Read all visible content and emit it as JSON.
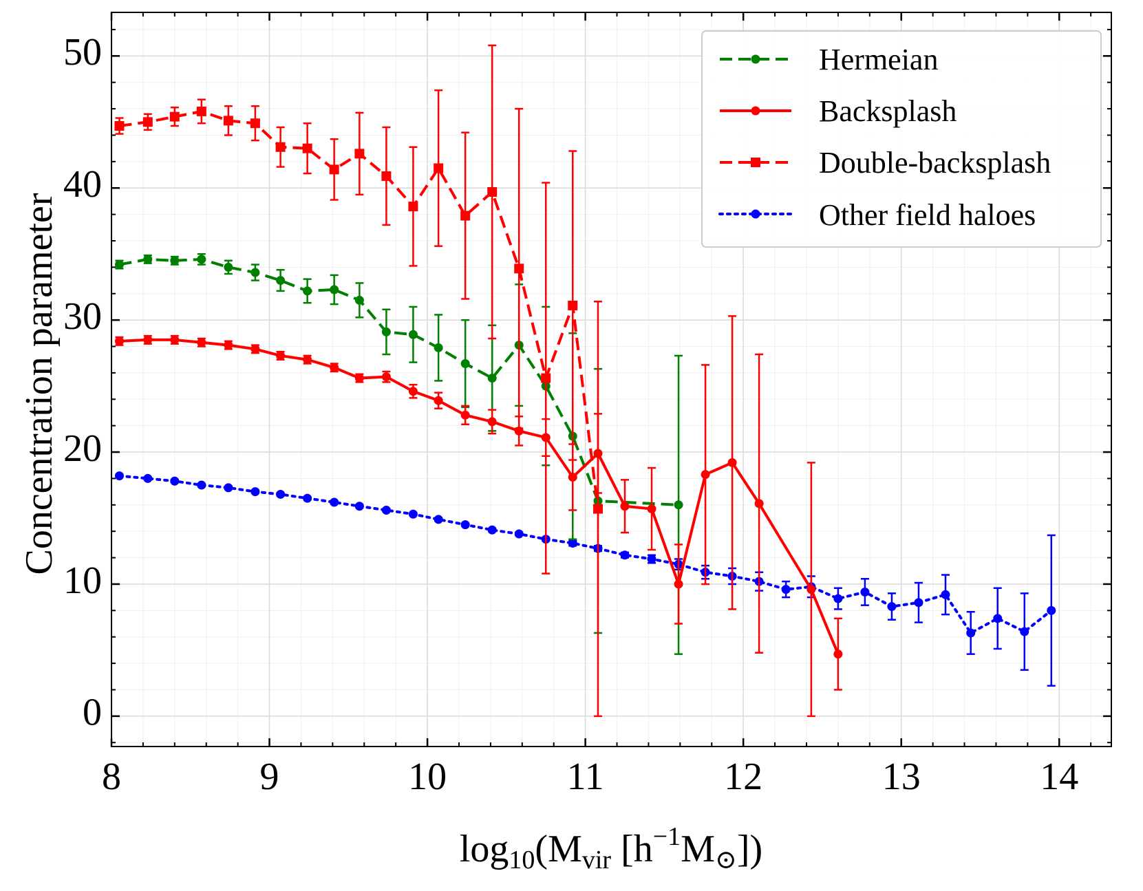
{
  "chart_data": {
    "type": "line",
    "title": "",
    "xlabel": {
      "prefix": "log",
      "sub1": "10",
      "mid": "(M",
      "sub2": "vir",
      "mid2": " [h",
      "sup": "−1",
      "mid3": "M",
      "sub3": "⊙",
      "suffix": "])"
    },
    "ylabel": "Concentration parameter",
    "xlim": [
      8,
      14.33
    ],
    "ylim": [
      -2.3,
      53.3
    ],
    "xticks": [
      8,
      9,
      10,
      11,
      12,
      13,
      14
    ],
    "xtick_labels": [
      "8",
      "9",
      "10",
      "11",
      "12",
      "13",
      "14"
    ],
    "yticks": [
      0,
      10,
      20,
      30,
      40,
      50
    ],
    "ytick_labels": [
      "0",
      "10",
      "20",
      "30",
      "40",
      "50"
    ],
    "grid": true,
    "legend_position": "top-right",
    "series": [
      {
        "name": "Hermeian",
        "color": "#008000",
        "style": "dashed",
        "marker": "circle",
        "x": [
          8.05,
          8.23,
          8.4,
          8.57,
          8.74,
          8.91,
          9.07,
          9.24,
          9.41,
          9.57,
          9.74,
          9.91,
          10.07,
          10.24,
          10.41,
          10.58,
          10.75,
          10.92,
          11.08,
          11.59
        ],
        "y": [
          34.2,
          34.6,
          34.5,
          34.6,
          34.0,
          33.6,
          33.0,
          32.2,
          32.3,
          31.5,
          29.1,
          28.9,
          27.9,
          26.7,
          25.6,
          28.1,
          25.0,
          21.2,
          16.3,
          16.0
        ],
        "err": [
          0.3,
          0.3,
          0.3,
          0.4,
          0.5,
          0.6,
          0.8,
          0.9,
          1.1,
          1.3,
          1.7,
          2.1,
          2.5,
          3.3,
          4.0,
          4.6,
          6.0,
          7.8,
          10.0,
          11.3
        ]
      },
      {
        "name": "Backsplash",
        "color": "#ff0000",
        "style": "solid",
        "marker": "circle",
        "x": [
          8.05,
          8.23,
          8.4,
          8.57,
          8.74,
          8.91,
          9.07,
          9.24,
          9.41,
          9.57,
          9.74,
          9.91,
          10.07,
          10.24,
          10.41,
          10.58,
          10.75,
          10.92,
          11.08,
          11.25,
          11.42,
          11.59,
          11.76,
          11.93,
          12.1,
          12.43,
          12.6
        ],
        "y": [
          28.4,
          28.5,
          28.5,
          28.3,
          28.1,
          27.8,
          27.3,
          27.0,
          26.4,
          25.6,
          25.7,
          24.6,
          23.9,
          22.8,
          22.3,
          21.6,
          21.1,
          18.1,
          19.9,
          15.9,
          15.7,
          10.0,
          18.3,
          19.2,
          16.1,
          9.6,
          4.7
        ],
        "err": [
          0.3,
          0.3,
          0.3,
          0.3,
          0.3,
          0.3,
          0.3,
          0.3,
          0.3,
          0.3,
          0.4,
          0.5,
          0.6,
          0.7,
          0.9,
          1.1,
          1.4,
          2.5,
          3.0,
          2.0,
          3.1,
          3.0,
          8.3,
          11.1,
          11.3,
          9.6,
          2.7
        ]
      },
      {
        "name": "Double-backsplash",
        "color": "#ff0000",
        "style": "dashed",
        "marker": "square",
        "x": [
          8.05,
          8.23,
          8.4,
          8.57,
          8.74,
          8.91,
          9.07,
          9.24,
          9.41,
          9.57,
          9.74,
          9.91,
          10.07,
          10.24,
          10.41,
          10.58,
          10.75,
          10.92,
          11.08
        ],
        "y": [
          44.7,
          45.0,
          45.4,
          45.8,
          45.1,
          44.9,
          43.1,
          43.0,
          41.4,
          42.6,
          40.9,
          38.6,
          41.5,
          37.9,
          39.7,
          33.9,
          25.6,
          31.1,
          15.7
        ],
        "err": [
          0.6,
          0.6,
          0.7,
          0.9,
          1.1,
          1.3,
          1.5,
          1.9,
          2.3,
          3.1,
          3.7,
          4.5,
          5.9,
          6.3,
          11.1,
          12.1,
          14.8,
          11.7,
          15.7
        ]
      },
      {
        "name": "Other field haloes",
        "color": "#0000ff",
        "style": "dotted",
        "marker": "circle",
        "x": [
          8.05,
          8.23,
          8.4,
          8.57,
          8.74,
          8.91,
          9.07,
          9.24,
          9.41,
          9.57,
          9.74,
          9.91,
          10.07,
          10.24,
          10.41,
          10.58,
          10.75,
          10.92,
          11.08,
          11.25,
          11.42,
          11.59,
          11.76,
          11.93,
          12.1,
          12.27,
          12.43,
          12.6,
          12.77,
          12.94,
          13.11,
          13.28,
          13.44,
          13.61,
          13.78,
          13.95
        ],
        "y": [
          18.2,
          18.0,
          17.8,
          17.5,
          17.3,
          17.0,
          16.8,
          16.5,
          16.2,
          15.9,
          15.6,
          15.3,
          14.9,
          14.5,
          14.1,
          13.8,
          13.4,
          13.1,
          12.7,
          12.2,
          11.9,
          11.5,
          10.9,
          10.6,
          10.2,
          9.6,
          9.8,
          8.9,
          9.4,
          8.3,
          8.6,
          9.2,
          6.3,
          7.4,
          6.4,
          8.0
        ],
        "err": [
          0.1,
          0.1,
          0.1,
          0.1,
          0.1,
          0.1,
          0.1,
          0.1,
          0.1,
          0.1,
          0.1,
          0.1,
          0.1,
          0.1,
          0.1,
          0.1,
          0.1,
          0.2,
          0.2,
          0.2,
          0.3,
          0.4,
          0.5,
          0.6,
          0.7,
          0.6,
          0.8,
          0.8,
          1.0,
          1.0,
          1.5,
          1.5,
          1.6,
          2.3,
          2.9,
          5.7
        ]
      }
    ]
  }
}
